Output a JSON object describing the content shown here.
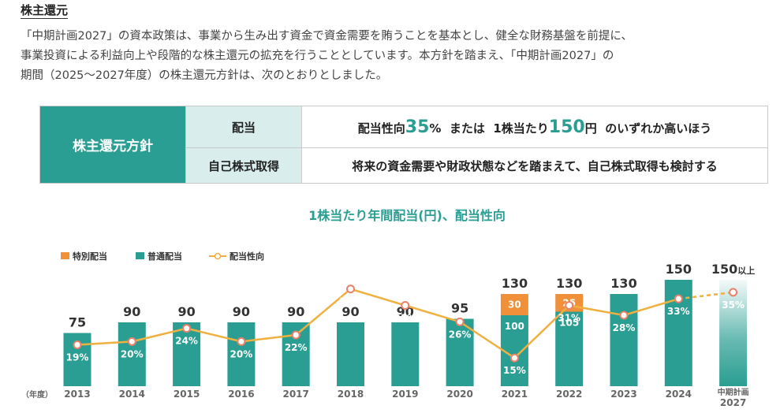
{
  "section": {
    "title": "株主還元",
    "paragraph_lines": [
      "「中期計画2027」の資本政策は、事業から生み出す資金で資金需要を賄うことを基本とし、健全な財務基盤を前提に、",
      "事業投資による利益向上や段階的な株主還元の拡充を行うこととしています。本方針を踏まえ、「中期計画2027」の",
      "期間（2025～2027年度）の株主還元方針は、次のとおりとしました。"
    ]
  },
  "policy": {
    "header": "株主還元方針",
    "dividend_label": "配当",
    "dividend_parts": {
      "prefix": "配当性向",
      "num1": "35",
      "unit1": "%",
      "mid": "または",
      "mid2": "1株当たり",
      "num2": "150",
      "unit2": "円",
      "suffix": "のいずれか高いほう"
    },
    "buyback_label": "自己株式取得",
    "buyback_text": "将来の資金需要や財政状態などを踏まえて、自己株式取得も検討する"
  },
  "colors": {
    "teal": "#2a9e92",
    "orange": "#f0903a",
    "line": "#f0b040",
    "light_teal": "#d9eeec"
  },
  "chart_data": {
    "type": "bar",
    "title": "1株当たり年間配当(円)、配当性向",
    "x_axis_prefix": "（年度）",
    "categories": [
      "2013",
      "2014",
      "2015",
      "2016",
      "2017",
      "2018",
      "2019",
      "2020",
      "2021",
      "2022",
      "2023",
      "2024",
      "中期計画\n2027"
    ],
    "legend": [
      {
        "name": "特別配当",
        "marker": "square",
        "color": "#f0903a"
      },
      {
        "name": "普通配当",
        "marker": "square",
        "color": "#2a9e92"
      },
      {
        "name": "配当性向",
        "marker": "line-circle",
        "color": "#f0b040"
      }
    ],
    "series": [
      {
        "name": "普通配当",
        "values": [
          75,
          90,
          90,
          90,
          90,
          90,
          90,
          95,
          100,
          105,
          130,
          150,
          150
        ]
      },
      {
        "name": "特別配当",
        "values": [
          0,
          0,
          0,
          0,
          0,
          0,
          0,
          0,
          30,
          25,
          0,
          0,
          0
        ]
      },
      {
        "name": "配当性向",
        "values": [
          19,
          20,
          24,
          20,
          22,
          36,
          31,
          26,
          15,
          31,
          28,
          33,
          35
        ],
        "unit": "%"
      }
    ],
    "total_labels": [
      "75",
      "90",
      "90",
      "90",
      "90",
      "90",
      "90",
      "95",
      "130",
      "130",
      "130",
      "150",
      "150"
    ],
    "total_label_suffix_last": "以上",
    "ordinary_labels_shown": {
      "2021": "100",
      "2022": "105"
    },
    "special_labels_shown": {
      "2021": "30",
      "2022": "25"
    },
    "ylim": [
      0,
      200
    ],
    "payout_ylim": [
      0,
      80
    ],
    "forecast_last": true
  }
}
